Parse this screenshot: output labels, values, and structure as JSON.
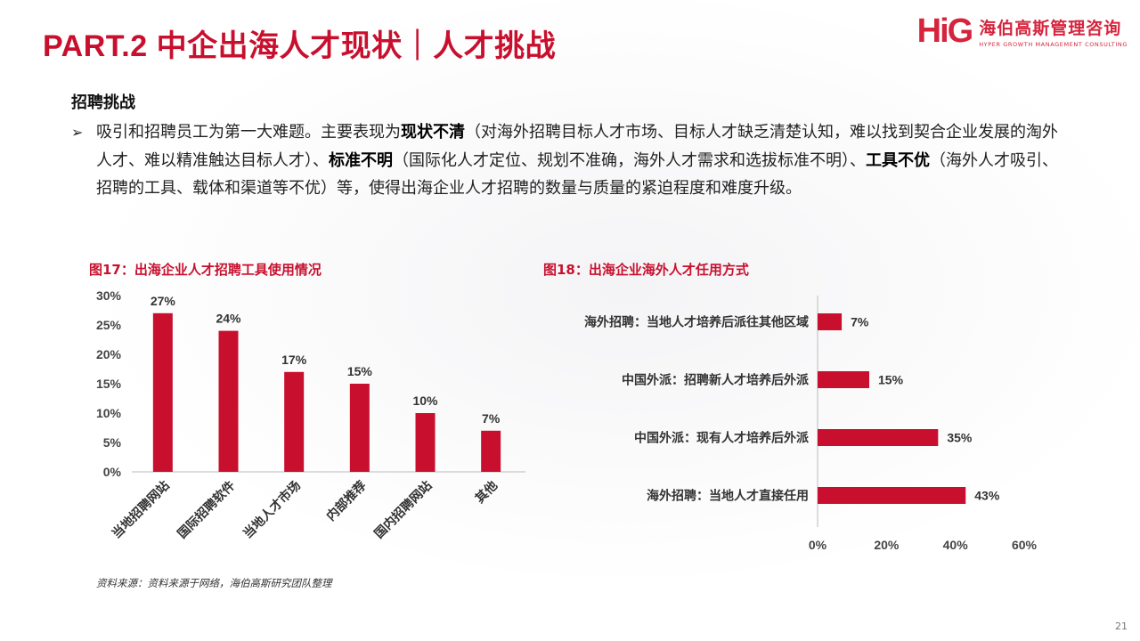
{
  "header": {
    "title": "PART.2 中企出海人才现状｜人才挑战",
    "logo_mark": "HiG",
    "logo_cn": "海伯高斯管理咨询",
    "logo_en": "HYPER GROWTH MANAGEMENT CONSULTING"
  },
  "section": {
    "heading": "招聘挑战",
    "bullet_marker": "➢",
    "bullet_parts": [
      {
        "text": "吸引和招聘员工为第一大难题。主要表现为",
        "bold": false
      },
      {
        "text": "现状不清",
        "bold": true
      },
      {
        "text": "（对海外招聘目标人才市场、目标人才缺乏清楚认知，难以找到契合企业发展的淘外人才、难以精准触达目标人才）、",
        "bold": false
      },
      {
        "text": "标准不明",
        "bold": true
      },
      {
        "text": "（国际化人才定位、规划不准确，海外人才需求和选拔标准不明）、",
        "bold": false
      },
      {
        "text": "工具不优",
        "bold": true
      },
      {
        "text": "（海外人才吸引、招聘的工具、载体和渠道等不优）等，使得出海企业人才招聘的数量与质量的紧迫程度和难度升级。",
        "bold": false
      }
    ]
  },
  "chart_data": [
    {
      "type": "bar",
      "title": "图17：出海企业人才招聘工具使用情况",
      "categories": [
        "当地招聘网站",
        "国际招聘软件",
        "当地人才市场",
        "内部推荐",
        "国内招聘网站",
        "其他"
      ],
      "values": [
        27,
        24,
        17,
        15,
        10,
        7
      ],
      "data_labels": [
        "27%",
        "24%",
        "17%",
        "15%",
        "10%",
        "7%"
      ],
      "y_ticks": [
        "0%",
        "5%",
        "10%",
        "15%",
        "20%",
        "25%",
        "30%"
      ],
      "ylim": [
        0,
        30
      ],
      "grid": false,
      "bar_color": "#c8102e"
    },
    {
      "type": "bar",
      "orientation": "horizontal",
      "title": "图18：出海企业海外人才任用方式",
      "categories": [
        "海外招聘：当地人才培养后派往其他区域",
        "中国外派：招聘新人才培养后外派",
        "中国外派：现有人才培养后外派",
        "海外招聘：当地人才直接任用"
      ],
      "values": [
        7,
        15,
        35,
        43
      ],
      "data_labels": [
        "7%",
        "15%",
        "35%",
        "43%"
      ],
      "x_ticks": [
        "0%",
        "20%",
        "40%",
        "60%"
      ],
      "xlim": [
        0,
        60
      ],
      "grid": false,
      "bar_color": "#c8102e"
    }
  ],
  "footer": {
    "source": "资料来源：资料来源于网络，海伯高斯研究团队整理",
    "page_number": "21"
  }
}
